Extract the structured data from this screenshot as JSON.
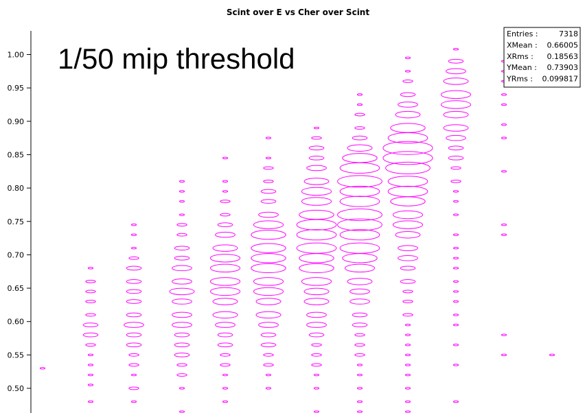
{
  "chart_data": {
    "type": "scatter",
    "title": "Scint over E vs Cher over Scint",
    "xlabel": "",
    "ylabel": "",
    "annotation": "1/50 mip threshold",
    "ylim": [
      0.465,
      1.03
    ],
    "xlim": [
      0.0,
      1.2
    ],
    "yticks": [
      "0.50",
      "0.55",
      "0.60",
      "0.65",
      "0.70",
      "0.75",
      "0.80",
      "0.85",
      "0.90",
      "0.95",
      "1.00"
    ],
    "marker_color": "#ff00ff",
    "stats_box": {
      "rows": [
        {
          "label": "Entries :",
          "value": "7318"
        },
        {
          "label": "XMean :",
          "value": "0.66005"
        },
        {
          "label": "XRms :",
          "value": "0.18563"
        },
        {
          "label": "YMean :",
          "value": "0.73903"
        },
        {
          "label": "YRms :",
          "value": "0.099817"
        }
      ]
    },
    "columns": [
      {
        "x": 0.06,
        "points": [
          [
            0.53,
            1
          ]
        ]
      },
      {
        "x": 0.16,
        "points": [
          [
            0.48,
            1
          ],
          [
            0.505,
            1
          ],
          [
            0.52,
            1
          ],
          [
            0.535,
            1
          ],
          [
            0.55,
            1
          ],
          [
            0.565,
            2
          ],
          [
            0.58,
            3
          ],
          [
            0.595,
            3
          ],
          [
            0.61,
            2
          ],
          [
            0.63,
            2
          ],
          [
            0.645,
            2
          ],
          [
            0.66,
            2
          ],
          [
            0.68,
            1
          ]
        ]
      },
      {
        "x": 0.25,
        "points": [
          [
            0.48,
            1
          ],
          [
            0.5,
            2
          ],
          [
            0.52,
            1
          ],
          [
            0.535,
            2
          ],
          [
            0.55,
            2
          ],
          [
            0.565,
            3
          ],
          [
            0.58,
            3
          ],
          [
            0.595,
            4
          ],
          [
            0.61,
            3
          ],
          [
            0.63,
            3
          ],
          [
            0.645,
            3
          ],
          [
            0.66,
            3
          ],
          [
            0.68,
            3
          ],
          [
            0.695,
            2
          ],
          [
            0.71,
            1
          ],
          [
            0.73,
            1
          ],
          [
            0.745,
            1
          ]
        ]
      },
      {
        "x": 0.35,
        "points": [
          [
            0.465,
            1
          ],
          [
            0.5,
            1
          ],
          [
            0.52,
            2
          ],
          [
            0.535,
            2
          ],
          [
            0.55,
            3
          ],
          [
            0.565,
            3
          ],
          [
            0.58,
            3
          ],
          [
            0.595,
            4
          ],
          [
            0.61,
            4
          ],
          [
            0.63,
            4
          ],
          [
            0.645,
            5
          ],
          [
            0.66,
            4
          ],
          [
            0.68,
            4
          ],
          [
            0.695,
            3
          ],
          [
            0.71,
            3
          ],
          [
            0.73,
            2
          ],
          [
            0.745,
            2
          ],
          [
            0.76,
            1
          ],
          [
            0.78,
            1
          ],
          [
            0.795,
            1
          ],
          [
            0.81,
            1
          ]
        ]
      },
      {
        "x": 0.44,
        "points": [
          [
            0.48,
            1
          ],
          [
            0.5,
            1
          ],
          [
            0.52,
            1
          ],
          [
            0.535,
            2
          ],
          [
            0.55,
            2
          ],
          [
            0.565,
            3
          ],
          [
            0.58,
            3
          ],
          [
            0.595,
            4
          ],
          [
            0.61,
            5
          ],
          [
            0.63,
            5
          ],
          [
            0.645,
            6
          ],
          [
            0.66,
            6
          ],
          [
            0.68,
            6
          ],
          [
            0.695,
            6
          ],
          [
            0.71,
            5
          ],
          [
            0.73,
            4
          ],
          [
            0.745,
            3
          ],
          [
            0.76,
            2
          ],
          [
            0.78,
            2
          ],
          [
            0.795,
            1
          ],
          [
            0.81,
            1
          ],
          [
            0.845,
            1
          ]
        ]
      },
      {
        "x": 0.53,
        "points": [
          [
            0.5,
            1
          ],
          [
            0.52,
            1
          ],
          [
            0.535,
            2
          ],
          [
            0.55,
            2
          ],
          [
            0.565,
            3
          ],
          [
            0.58,
            3
          ],
          [
            0.595,
            4
          ],
          [
            0.61,
            5
          ],
          [
            0.63,
            5
          ],
          [
            0.645,
            6
          ],
          [
            0.66,
            6
          ],
          [
            0.68,
            7
          ],
          [
            0.695,
            7
          ],
          [
            0.71,
            7
          ],
          [
            0.73,
            7
          ],
          [
            0.745,
            6
          ],
          [
            0.76,
            4
          ],
          [
            0.78,
            3
          ],
          [
            0.795,
            3
          ],
          [
            0.81,
            2
          ],
          [
            0.83,
            2
          ],
          [
            0.845,
            1
          ],
          [
            0.875,
            1
          ]
        ]
      },
      {
        "x": 0.63,
        "points": [
          [
            0.465,
            1
          ],
          [
            0.5,
            1
          ],
          [
            0.52,
            1
          ],
          [
            0.535,
            2
          ],
          [
            0.55,
            2
          ],
          [
            0.565,
            2
          ],
          [
            0.58,
            3
          ],
          [
            0.595,
            4
          ],
          [
            0.61,
            4
          ],
          [
            0.63,
            5
          ],
          [
            0.645,
            5
          ],
          [
            0.66,
            6
          ],
          [
            0.68,
            7
          ],
          [
            0.695,
            7
          ],
          [
            0.71,
            8
          ],
          [
            0.73,
            8
          ],
          [
            0.745,
            8
          ],
          [
            0.76,
            7
          ],
          [
            0.78,
            6
          ],
          [
            0.795,
            6
          ],
          [
            0.81,
            5
          ],
          [
            0.83,
            4
          ],
          [
            0.845,
            3
          ],
          [
            0.86,
            3
          ],
          [
            0.875,
            2
          ],
          [
            0.89,
            1
          ]
        ]
      },
      {
        "x": 0.72,
        "points": [
          [
            0.465,
            1
          ],
          [
            0.48,
            1
          ],
          [
            0.5,
            1
          ],
          [
            0.52,
            1
          ],
          [
            0.535,
            1
          ],
          [
            0.55,
            2
          ],
          [
            0.565,
            2
          ],
          [
            0.58,
            2
          ],
          [
            0.595,
            3
          ],
          [
            0.61,
            3
          ],
          [
            0.63,
            4
          ],
          [
            0.645,
            4
          ],
          [
            0.66,
            5
          ],
          [
            0.68,
            6
          ],
          [
            0.695,
            7
          ],
          [
            0.71,
            8
          ],
          [
            0.73,
            8
          ],
          [
            0.745,
            9
          ],
          [
            0.76,
            9
          ],
          [
            0.78,
            8
          ],
          [
            0.795,
            8
          ],
          [
            0.81,
            9
          ],
          [
            0.83,
            8
          ],
          [
            0.845,
            7
          ],
          [
            0.86,
            5
          ],
          [
            0.875,
            3
          ],
          [
            0.89,
            2
          ],
          [
            0.91,
            2
          ],
          [
            0.925,
            1
          ],
          [
            0.94,
            1
          ]
        ]
      },
      {
        "x": 0.82,
        "points": [
          [
            0.465,
            1
          ],
          [
            0.48,
            1
          ],
          [
            0.5,
            1
          ],
          [
            0.52,
            1
          ],
          [
            0.535,
            1
          ],
          [
            0.55,
            1
          ],
          [
            0.565,
            1
          ],
          [
            0.58,
            1
          ],
          [
            0.595,
            1
          ],
          [
            0.61,
            2
          ],
          [
            0.63,
            2
          ],
          [
            0.645,
            2
          ],
          [
            0.66,
            3
          ],
          [
            0.68,
            3
          ],
          [
            0.695,
            4
          ],
          [
            0.71,
            4
          ],
          [
            0.73,
            5
          ],
          [
            0.745,
            6
          ],
          [
            0.76,
            6
          ],
          [
            0.78,
            7
          ],
          [
            0.795,
            8
          ],
          [
            0.81,
            8
          ],
          [
            0.83,
            9
          ],
          [
            0.845,
            10
          ],
          [
            0.86,
            10
          ],
          [
            0.875,
            8
          ],
          [
            0.89,
            7
          ],
          [
            0.91,
            5
          ],
          [
            0.925,
            4
          ],
          [
            0.94,
            3
          ],
          [
            0.96,
            2
          ],
          [
            0.975,
            1
          ],
          [
            0.995,
            1
          ]
        ]
      },
      {
        "x": 0.92,
        "points": [
          [
            0.48,
            1
          ],
          [
            0.535,
            1
          ],
          [
            0.565,
            1
          ],
          [
            0.595,
            1
          ],
          [
            0.61,
            1
          ],
          [
            0.63,
            1
          ],
          [
            0.645,
            1
          ],
          [
            0.66,
            1
          ],
          [
            0.68,
            1
          ],
          [
            0.695,
            1
          ],
          [
            0.71,
            1
          ],
          [
            0.73,
            1
          ],
          [
            0.76,
            1
          ],
          [
            0.78,
            1
          ],
          [
            0.795,
            1
          ],
          [
            0.81,
            2
          ],
          [
            0.83,
            2
          ],
          [
            0.845,
            3
          ],
          [
            0.86,
            3
          ],
          [
            0.875,
            4
          ],
          [
            0.89,
            5
          ],
          [
            0.91,
            5
          ],
          [
            0.925,
            6
          ],
          [
            0.94,
            6
          ],
          [
            0.96,
            5
          ],
          [
            0.975,
            4
          ],
          [
            0.99,
            3
          ],
          [
            1.008,
            1
          ]
        ]
      },
      {
        "x": 1.02,
        "points": [
          [
            0.55,
            1
          ],
          [
            0.58,
            1
          ],
          [
            0.73,
            1
          ],
          [
            0.745,
            1
          ],
          [
            0.825,
            1
          ],
          [
            0.875,
            1
          ],
          [
            0.895,
            1
          ],
          [
            0.925,
            1
          ],
          [
            0.94,
            1
          ],
          [
            0.96,
            1
          ],
          [
            0.975,
            1
          ],
          [
            0.99,
            1
          ]
        ]
      },
      {
        "x": 1.12,
        "points": [
          [
            0.55,
            1
          ]
        ]
      }
    ]
  }
}
